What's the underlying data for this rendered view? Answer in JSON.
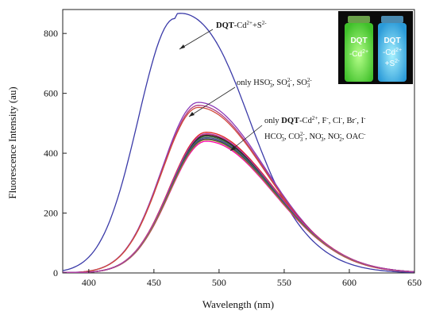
{
  "chart_data": {
    "type": "line",
    "xlabel": "Wavelength (nm)",
    "ylabel": "Fluorescence Intensity (au)",
    "xlim": [
      380,
      650
    ],
    "ylim": [
      0,
      880
    ],
    "xticks": [
      "400",
      "450",
      "500",
      "550",
      "600",
      "650"
    ],
    "yticks": [
      "0",
      "200",
      "400",
      "600",
      "800"
    ],
    "grid": false,
    "series": [
      {
        "color": "#3a3aa8",
        "peak_x": 466,
        "peak_y": 850,
        "shoulder": true
      },
      {
        "color": "#8a3ab8",
        "peak_x": 484,
        "peak_y": 570
      },
      {
        "color": "#b03a80",
        "peak_x": 484,
        "peak_y": 560
      },
      {
        "color": "#d04a3a",
        "peak_x": 484,
        "peak_y": 553
      },
      {
        "color": "#e02020",
        "peak_x": 490,
        "peak_y": 470
      },
      {
        "color": "#f05050",
        "peak_x": 490,
        "peak_y": 462
      },
      {
        "color": "#1a1a1a",
        "peak_x": 490,
        "peak_y": 460
      },
      {
        "color": "#3a6a3a",
        "peak_x": 490,
        "peak_y": 456
      },
      {
        "color": "#4a5a8a",
        "peak_x": 490,
        "peak_y": 452
      },
      {
        "color": "#2a2a6a",
        "peak_x": 490,
        "peak_y": 448
      },
      {
        "color": "#ff00aa",
        "peak_x": 490,
        "peak_y": 440
      },
      {
        "color": "#8a8a2a",
        "peak_x": 490,
        "peak_y": 445
      },
      {
        "color": "#aa3aaa",
        "peak_x": 490,
        "peak_y": 465
      }
    ],
    "annotations": {
      "a1_bold": "DQT",
      "a1_rest": "-Cd",
      "a1_sup1": "2+",
      "a1_mid": "+S",
      "a1_sup2": "2-",
      "a2_text": "only  HSO",
      "a2_sup1": "-",
      "a2_sub1": "3",
      "a2_t2": ", SO",
      "a2_sup2": "2-",
      "a2_sub2": "4",
      "a2_t3": ", SO",
      "a2_sup3": "2-",
      "a2_sub3": "3",
      "a3_only": "only ",
      "a3_bold": "DQT",
      "a3_rest": "-Cd",
      "a3_sup": "2+",
      "a3_ions": ", F",
      "a3_sup_f": "-",
      "a3_cl": ", Cl",
      "a3_sup_cl": "-",
      "a3_br": ", Br",
      "a3_sup_br": "-",
      "a3_i": ", I",
      "a3_sup_i": "-",
      "a4_hco": "HCO",
      "a4_sup1": "-",
      "a4_sub1": "3",
      "a4_co": ", CO",
      "a4_sup2": "2-",
      "a4_sub2": "3",
      "a4_no": ", NO",
      "a4_sup3": "-",
      "a4_sub3": "3",
      "a4_no2": ", NO",
      "a4_sup4": "-",
      "a4_sub4": "2",
      "a4_oac": ", OAC",
      "a4_sup5": "-"
    }
  },
  "inset_photo": {
    "left_vial": {
      "line1": "DQT",
      "line2": "-Cd",
      "line2_sup": "2+"
    },
    "right_vial": {
      "line1": "DQT",
      "line2": "-Cd",
      "line2_sup": "2+",
      "line3": "+S",
      "line3_sup": "2-"
    }
  }
}
